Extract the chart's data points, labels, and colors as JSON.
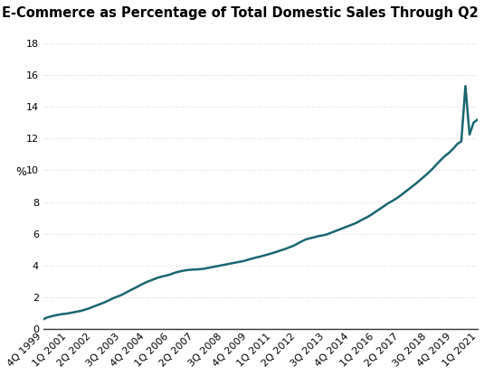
{
  "title": "E-Commerce as Percentage of Total Domestic Sales Through Q2 2021",
  "ylabel": "%",
  "line_color": "#1a6670",
  "background_color": "#ffffff",
  "ylim": [
    0,
    19
  ],
  "yticks": [
    0,
    2,
    4,
    6,
    8,
    10,
    12,
    14,
    16,
    18
  ],
  "x_labels": [
    "4Q 1999",
    "1Q 2001",
    "2Q 2002",
    "3Q 2003",
    "4Q 2004",
    "1Q 2006",
    "2Q 2007",
    "3Q 2008",
    "4Q 2009",
    "1Q 2011",
    "2Q 2012",
    "3Q 2013",
    "4Q 2014",
    "1Q 2016",
    "2Q 2017",
    "3Q 2018",
    "4Q 2019",
    "1Q 2021"
  ],
  "data_y": [
    0.63,
    0.75,
    0.82,
    0.88,
    0.93,
    0.97,
    1.0,
    1.05,
    1.1,
    1.15,
    1.22,
    1.3,
    1.4,
    1.5,
    1.6,
    1.7,
    1.82,
    1.95,
    2.05,
    2.15,
    2.28,
    2.42,
    2.55,
    2.68,
    2.82,
    2.95,
    3.05,
    3.15,
    3.25,
    3.32,
    3.38,
    3.45,
    3.55,
    3.62,
    3.68,
    3.72,
    3.75,
    3.76,
    3.78,
    3.8,
    3.85,
    3.9,
    3.95,
    4.0,
    4.05,
    4.1,
    4.15,
    4.2,
    4.25,
    4.3,
    4.38,
    4.45,
    4.52,
    4.58,
    4.65,
    4.72,
    4.8,
    4.88,
    4.97,
    5.05,
    5.15,
    5.25,
    5.38,
    5.52,
    5.65,
    5.72,
    5.78,
    5.85,
    5.9,
    5.95,
    6.05,
    6.15,
    6.25,
    6.35,
    6.45,
    6.55,
    6.65,
    6.78,
    6.92,
    7.05,
    7.2,
    7.38,
    7.55,
    7.72,
    7.9,
    8.05,
    8.2,
    8.38,
    8.58,
    8.78,
    8.98,
    9.18,
    9.4,
    9.62,
    9.85,
    10.1,
    10.38,
    10.65,
    10.9,
    11.1,
    11.35,
    11.65,
    11.82,
    15.3,
    12.25,
    13.0,
    13.2
  ],
  "title_fontsize": 10.5,
  "axis_fontsize": 9,
  "tick_fontsize": 8,
  "line_width": 1.8,
  "grid_color": "#bbbbbb",
  "spine_color": "#333333"
}
